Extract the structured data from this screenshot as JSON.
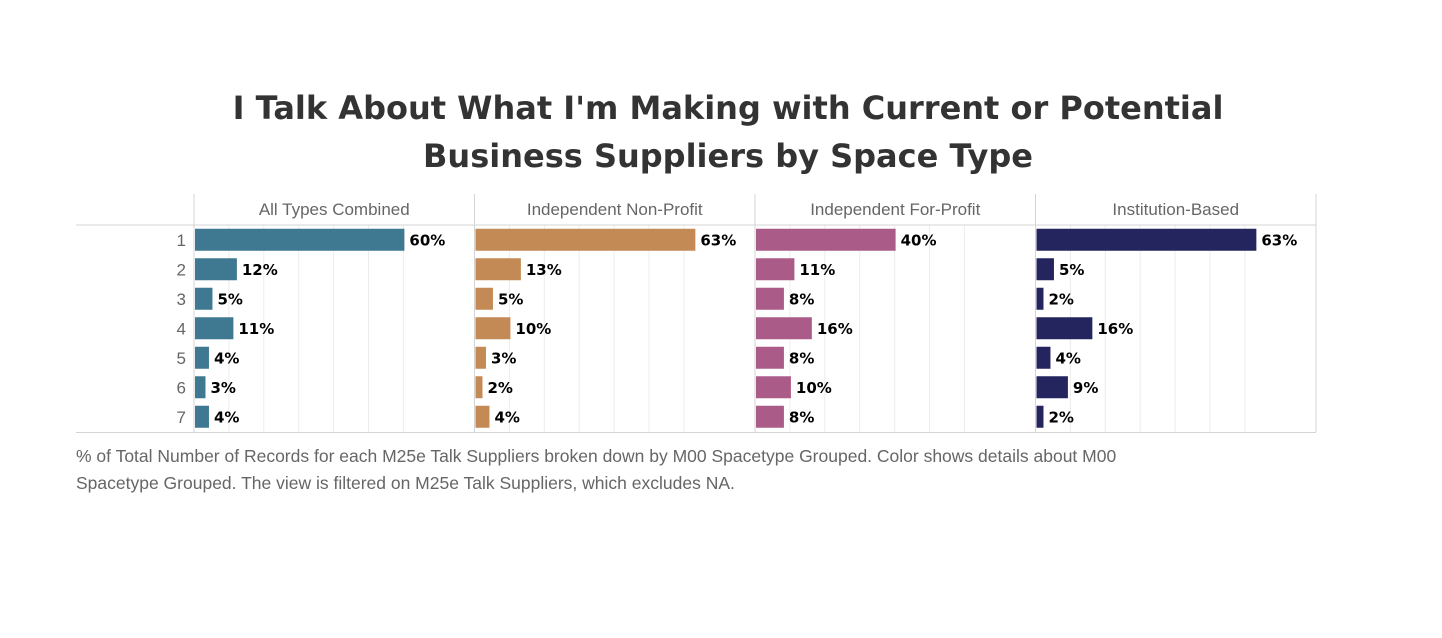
{
  "title": {
    "line1": "I Talk About What I'm Making with Current or Potential",
    "line2": "Business Suppliers by Space Type"
  },
  "footnote": {
    "line1": "% of Total Number of Records for each M25e Talk Suppliers broken down by M00 Spacetype Grouped.  Color shows details about M00",
    "line2": "Spacetype Grouped. The view is filtered on M25e Talk Suppliers, which excludes NA."
  },
  "chart_data": {
    "type": "bar",
    "orientation": "horizontal",
    "categories": [
      "1",
      "2",
      "3",
      "4",
      "5",
      "6",
      "7"
    ],
    "xlim": [
      0,
      70
    ],
    "grid": true,
    "value_format": "percent",
    "panels": [
      {
        "name": "All Types Combined",
        "color": "#3e7891",
        "values": [
          60,
          12,
          5,
          11,
          4,
          3,
          4
        ]
      },
      {
        "name": "Independent Non-Profit",
        "color": "#c48a55",
        "values": [
          63,
          13,
          5,
          10,
          3,
          2,
          4
        ]
      },
      {
        "name": "Independent For-Profit",
        "color": "#ab5b88",
        "values": [
          40,
          11,
          8,
          16,
          8,
          10,
          8
        ]
      },
      {
        "name": "Institution-Based",
        "color": "#24245f",
        "values": [
          63,
          5,
          2,
          16,
          4,
          9,
          2
        ]
      }
    ]
  }
}
